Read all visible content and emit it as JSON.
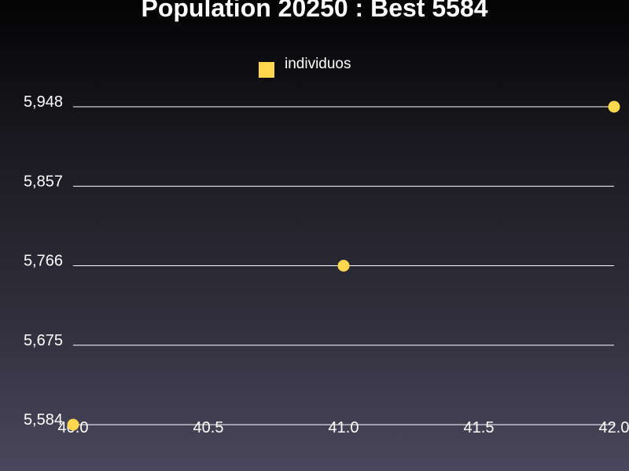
{
  "chart_data": {
    "type": "scatter",
    "title": "Population 20250 : Best 5584",
    "xlabel": "",
    "ylabel": "",
    "series": [
      {
        "name": "individuos",
        "color": "#ffd84d",
        "x": [
          40.0,
          41.0,
          42.0
        ],
        "y": [
          5584,
          5766,
          5948
        ]
      }
    ],
    "xlim": [
      40.0,
      42.0
    ],
    "ylim": [
      5584,
      5948
    ],
    "x_ticks": [
      "40.0",
      "40.5",
      "41.0",
      "41.5",
      "42.0"
    ],
    "y_ticks": [
      "5,948",
      "5,857",
      "5,766",
      "5,675",
      "5,584"
    ],
    "grid": "horizontal",
    "legend_position": "top-center",
    "background": "dark-gradient"
  }
}
